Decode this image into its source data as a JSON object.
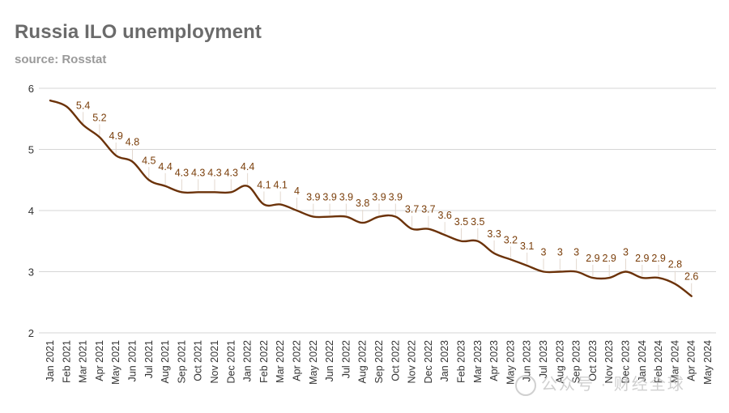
{
  "title": "Russia ILO unemployment",
  "subtitle": "source: Rosstat",
  "watermark": "公众号 · 财经全球",
  "colors": {
    "line": "#6b3209",
    "label": "#7a3e0a",
    "grid": "#d6d6d6",
    "axis": "#333333"
  },
  "chart_data": {
    "type": "line",
    "title": "Russia ILO unemployment",
    "subtitle": "source: Rosstat",
    "xlabel": "",
    "ylabel": "",
    "ylim": [
      2,
      6
    ],
    "yticks": [
      2,
      3,
      4,
      5,
      6
    ],
    "grid": true,
    "legend": "none",
    "categories": [
      "Jan 2021",
      "Feb 2021",
      "Mar 2021",
      "Apr 2021",
      "May 2021",
      "Jun 2021",
      "Jul 2021",
      "Aug 2021",
      "Sep 2021",
      "Oct 2021",
      "Nov 2021",
      "Dec 2021",
      "Jan 2022",
      "Feb 2022",
      "Mar 2022",
      "Apr 2022",
      "May 2022",
      "Jun 2022",
      "Jul 2022",
      "Aug 2022",
      "Sep 2022",
      "Oct 2022",
      "Nov 2022",
      "Dec 2022",
      "Jan 2023",
      "Feb 2023",
      "Mar 2023",
      "Apr 2023",
      "May 2023",
      "Jun 2023",
      "Jul 2023",
      "Aug 2023",
      "Sep 2023",
      "Oct 2023",
      "Nov 2023",
      "Dec 2023",
      "Jan 2024",
      "Feb 2024",
      "Mar 2024",
      "Apr 2024",
      "May 2024"
    ],
    "values": [
      5.8,
      5.7,
      5.4,
      5.2,
      4.9,
      4.8,
      4.5,
      4.4,
      4.3,
      4.3,
      4.3,
      4.3,
      4.4,
      4.1,
      4.1,
      4,
      3.9,
      3.9,
      3.9,
      3.8,
      3.9,
      3.9,
      3.7,
      3.7,
      3.6,
      3.5,
      3.5,
      3.3,
      3.2,
      3.1,
      3,
      3,
      3,
      2.9,
      2.9,
      3,
      2.9,
      2.9,
      2.8,
      2.6,
      null
    ],
    "data_labels": [
      "",
      "",
      "5.4",
      "5.2",
      "4.9",
      "4.8",
      "4.5",
      "4.4",
      "4.3",
      "4.3",
      "4.3",
      "4.3",
      "4.4",
      "4.1",
      "4.1",
      "4",
      "3.9",
      "3.9",
      "3.9",
      "3.8",
      "3.9",
      "3.9",
      "3.7",
      "3.7",
      "3.6",
      "3.5",
      "3.5",
      "3.3",
      "3.2",
      "3.1",
      "3",
      "3",
      "3",
      "2.9",
      "2.9",
      "3",
      "2.9",
      "2.9",
      "2.8",
      "2.6",
      ""
    ]
  }
}
